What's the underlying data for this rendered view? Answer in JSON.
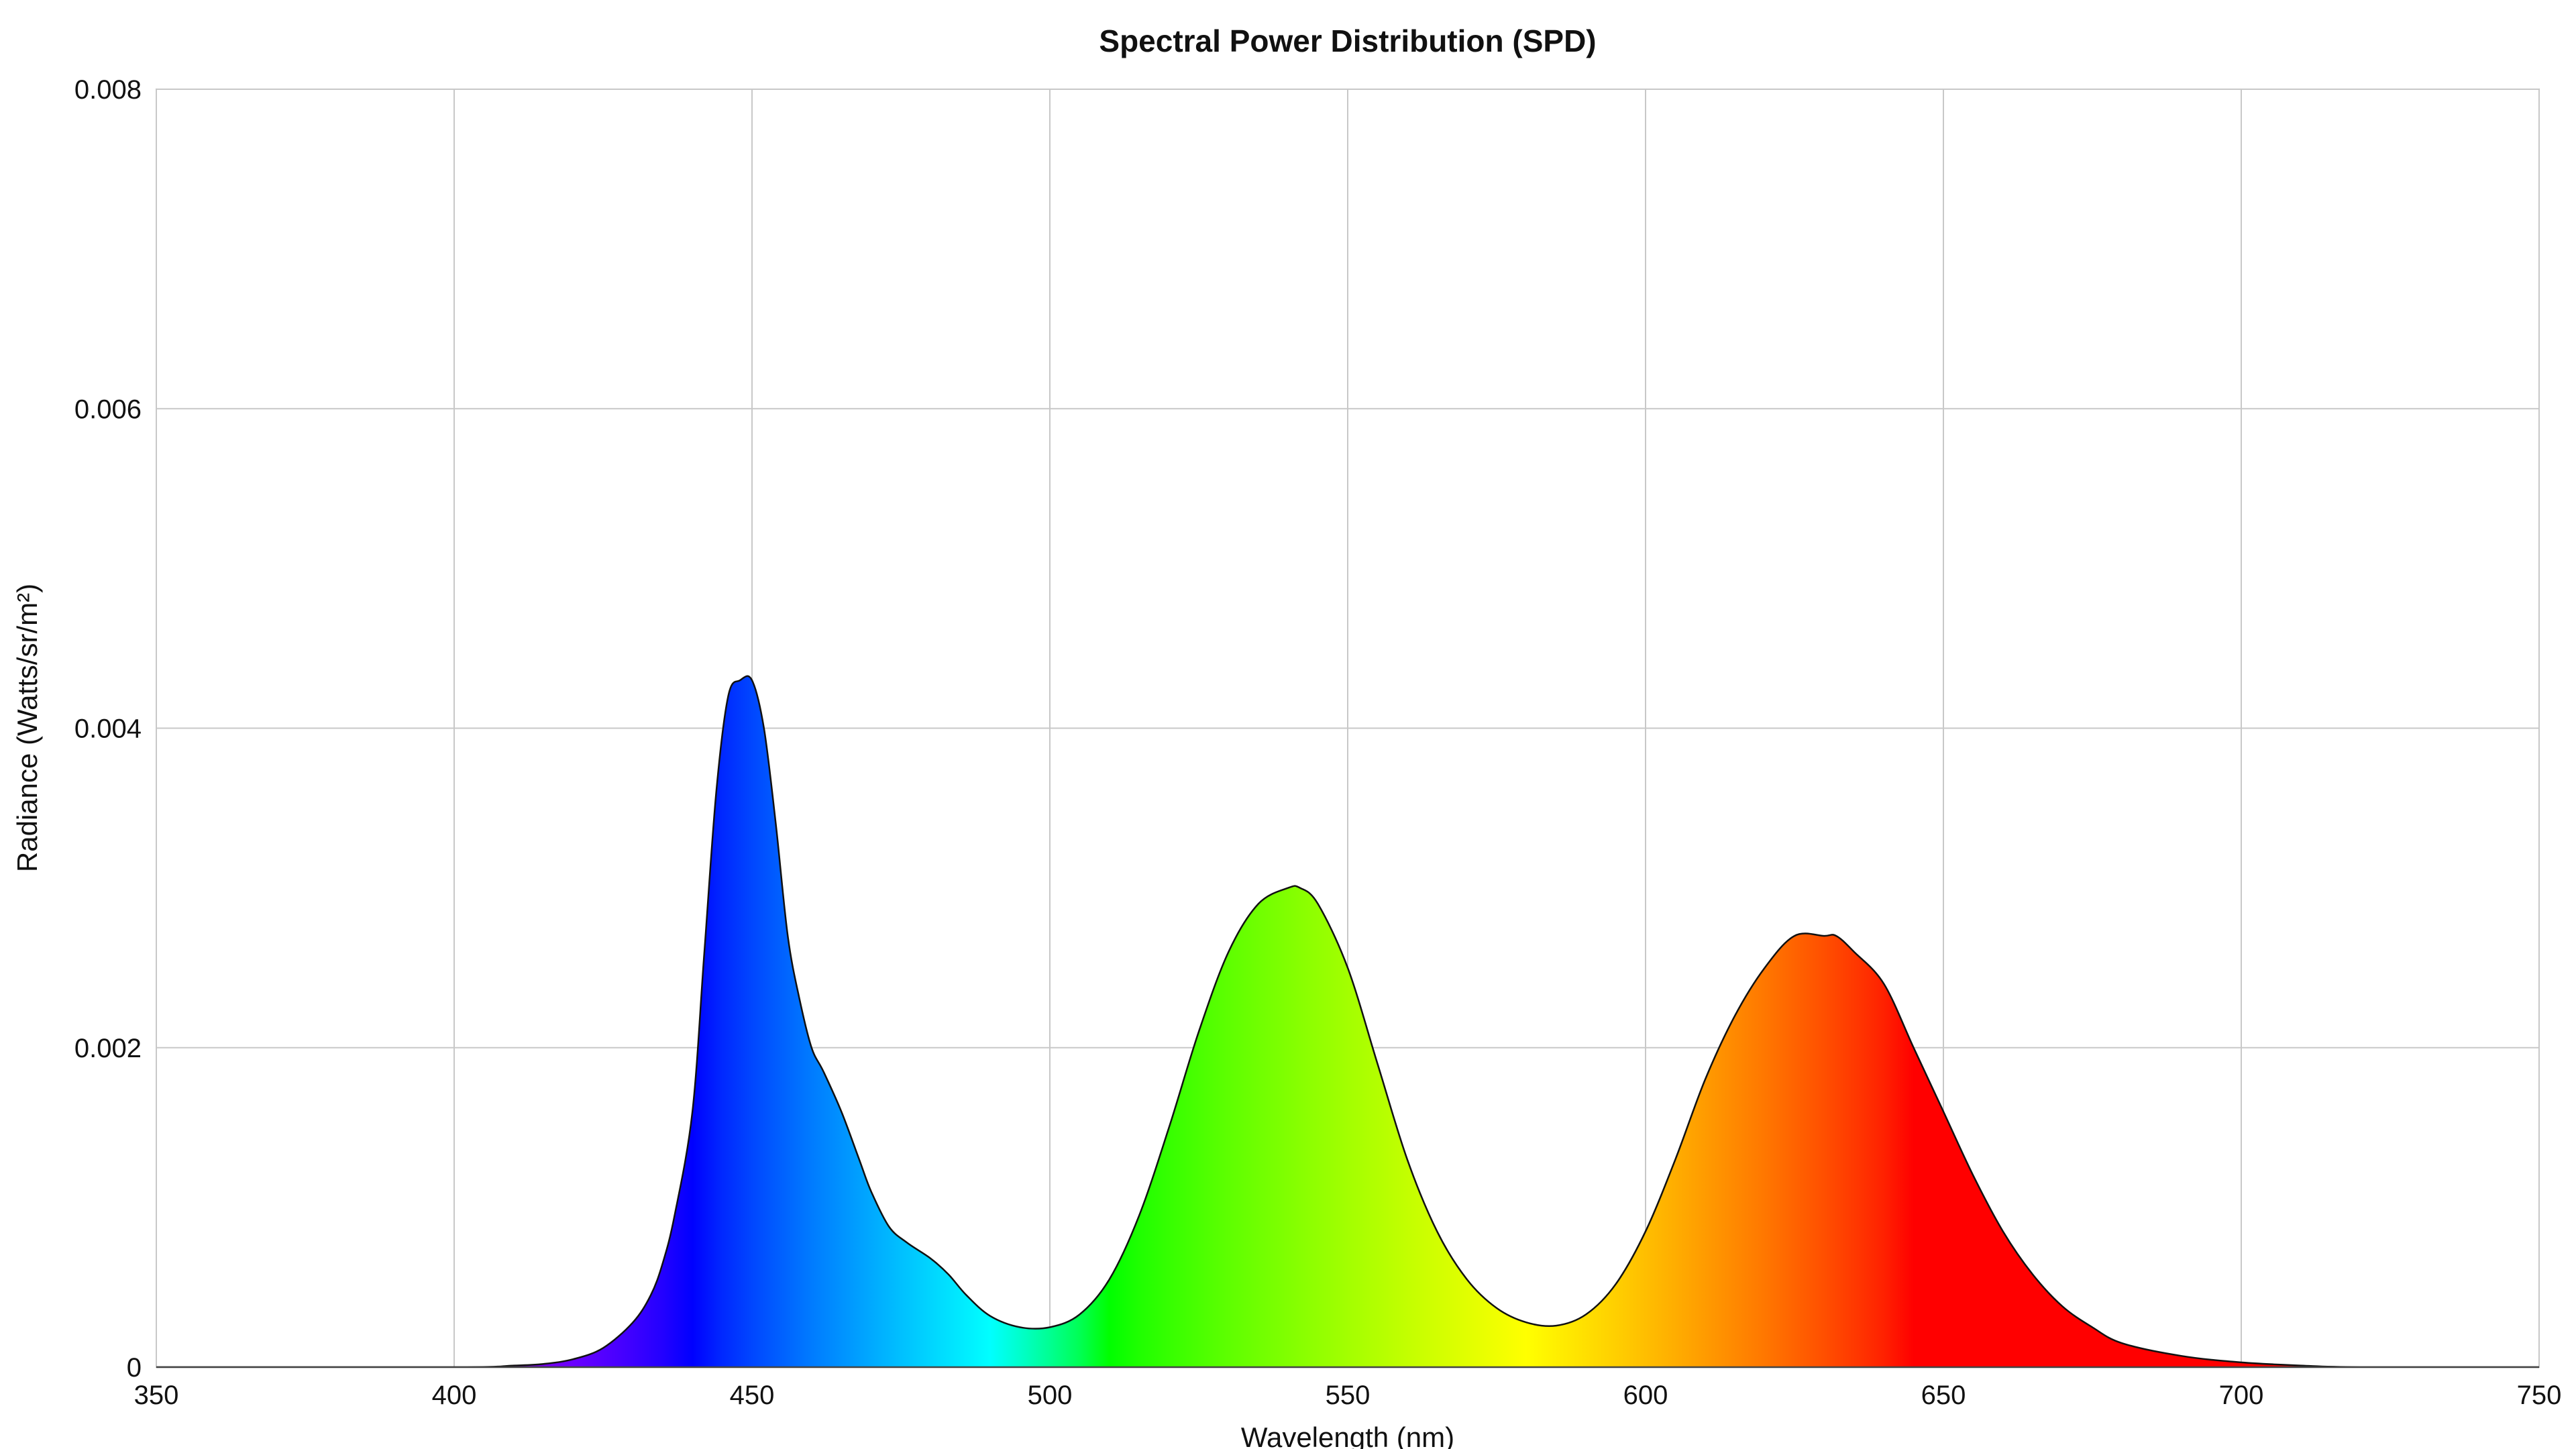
{
  "chart_data": {
    "type": "area",
    "title": "Spectral Power Distribution (SPD)",
    "xlabel": "Wavelength (nm)",
    "ylabel": "Radiance (Watts/sr/m²)",
    "xlim": [
      350,
      750
    ],
    "ylim": [
      0,
      0.008
    ],
    "x_ticks": [
      "350",
      "400",
      "450",
      "500",
      "550",
      "600",
      "650",
      "700",
      "750"
    ],
    "y_ticks": [
      "0",
      "0.002",
      "0.004",
      "0.006",
      "0.008"
    ],
    "grid": true,
    "fill": "wavelength-colored spectrum",
    "series": [
      {
        "x": [
          350,
          400,
          410,
          415,
          420,
          425,
          430,
          433,
          435,
          437,
          440,
          442,
          444,
          446,
          448,
          450,
          452,
          454,
          456,
          458,
          460,
          462,
          465,
          468,
          470,
          473,
          476,
          480,
          483,
          486,
          490,
          495,
          500,
          505,
          510,
          515,
          520,
          525,
          530,
          535,
          540,
          542,
          545,
          550,
          555,
          560,
          565,
          570,
          575,
          580,
          585,
          590,
          595,
          600,
          605,
          610,
          615,
          620,
          625,
          630,
          632,
          635,
          640,
          645,
          650,
          655,
          660,
          665,
          670,
          675,
          680,
          690,
          700,
          710,
          720,
          750
        ],
        "y": [
          0,
          0,
          1e-05,
          2e-05,
          5e-05,
          0.00012,
          0.00028,
          0.00045,
          0.00065,
          0.00095,
          0.0016,
          0.0026,
          0.0036,
          0.0042,
          0.0043,
          0.0043,
          0.004,
          0.0034,
          0.0027,
          0.0023,
          0.002,
          0.00185,
          0.0016,
          0.0013,
          0.0011,
          0.00088,
          0.00078,
          0.00068,
          0.00058,
          0.00045,
          0.00032,
          0.00025,
          0.00025,
          0.00033,
          0.00055,
          0.00095,
          0.0015,
          0.0021,
          0.0026,
          0.0029,
          0.003,
          0.003,
          0.0029,
          0.0025,
          0.0019,
          0.0013,
          0.00085,
          0.00055,
          0.00037,
          0.00028,
          0.00026,
          0.00033,
          0.00052,
          0.00085,
          0.0013,
          0.0018,
          0.0022,
          0.0025,
          0.0027,
          0.0027,
          0.0027,
          0.0026,
          0.0024,
          0.002,
          0.0016,
          0.0012,
          0.00085,
          0.00058,
          0.00038,
          0.00025,
          0.00015,
          7e-05,
          3e-05,
          1e-05,
          0,
          0
        ]
      }
    ]
  }
}
